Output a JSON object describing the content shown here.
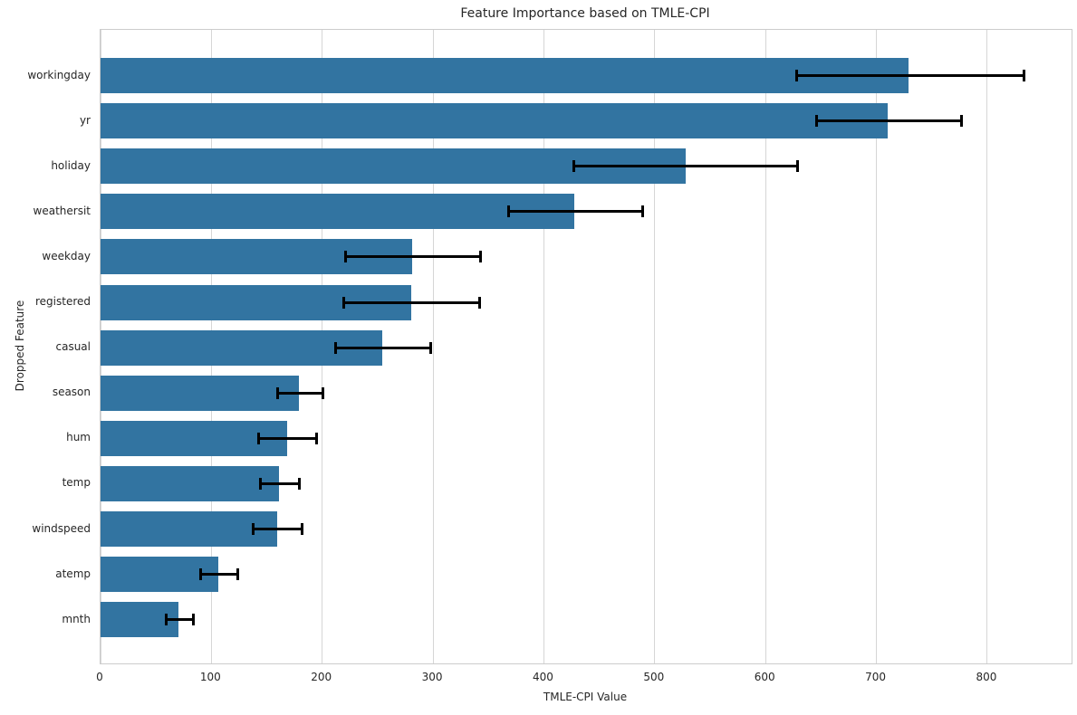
{
  "chart_data": {
    "type": "bar",
    "orientation": "horizontal",
    "title": "Feature Importance based on TMLE-CPI",
    "xlabel": "TMLE-CPI Value",
    "ylabel": "Dropped Feature",
    "categories": [
      "workingday",
      "yr",
      "holiday",
      "weathersit",
      "weekday",
      "registered",
      "casual",
      "season",
      "hum",
      "temp",
      "windspeed",
      "atemp",
      "mnth"
    ],
    "values": [
      729,
      710,
      528,
      427,
      281,
      280,
      254,
      179,
      168,
      161,
      159,
      106,
      70
    ],
    "error_low": [
      628,
      646,
      427,
      368,
      221,
      219,
      212,
      160,
      143,
      144,
      138,
      90,
      59
    ],
    "error_high": [
      833,
      777,
      629,
      489,
      343,
      342,
      298,
      201,
      195,
      179,
      182,
      124,
      84
    ],
    "xticks": [
      0,
      100,
      200,
      300,
      400,
      500,
      600,
      700,
      800
    ],
    "xlim": [
      0,
      876
    ],
    "grid": "vertical",
    "legend": "none",
    "bar_color": "#3274A1",
    "error_color": "#000000",
    "grid_color": "#d6d6d6",
    "text_color": "#262626"
  }
}
